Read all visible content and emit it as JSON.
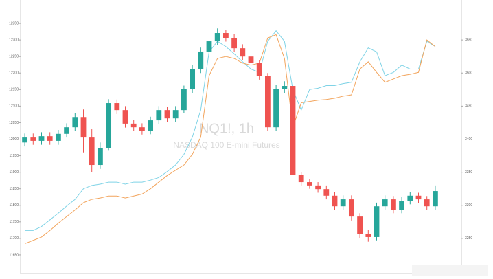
{
  "chart_data": {
    "type": "candlestick",
    "watermark_title": "NQ1!, 1h",
    "watermark_subtitle": "NASDAQ 100 E-mini Futures",
    "open": [
      11990,
      12005,
      11995,
      12009,
      11995,
      12016,
      12036,
      12067,
      12005,
      11922,
      11974,
      12109,
      12088,
      12047,
      12036,
      12026,
      12057,
      12088,
      12063,
      12088,
      12151,
      12213,
      12265,
      12296,
      12321,
      12306,
      12275,
      12250,
      12230,
      12192,
      12036,
      12151,
      12161,
      11891,
      11870,
      11860,
      11849,
      11829,
      11797,
      11818,
      11766,
      11714,
      11704,
      11797,
      11818,
      11787,
      11814,
      11829,
      11818,
      11797
    ],
    "high": [
      12017,
      12017,
      12021,
      12021,
      12028,
      12048,
      12079,
      12090,
      12030,
      11990,
      12121,
      12120,
      12100,
      12058,
      12048,
      12068,
      12100,
      12098,
      12100,
      12162,
      12225,
      12277,
      12308,
      12335,
      12330,
      12318,
      12287,
      12262,
      12240,
      12200,
      12165,
      12175,
      12170,
      11900,
      11880,
      11870,
      11860,
      11840,
      11830,
      11830,
      11776,
      11725,
      11808,
      11830,
      11828,
      11825,
      11840,
      11838,
      11828,
      11860
    ],
    "low": [
      11978,
      11983,
      11983,
      11983,
      11983,
      12005,
      12025,
      11960,
      11900,
      11910,
      11965,
      12076,
      12035,
      12024,
      12014,
      12015,
      12045,
      12051,
      12052,
      12078,
      12140,
      12200,
      12255,
      12285,
      12295,
      12264,
      12238,
      12218,
      12180,
      12025,
      12025,
      12140,
      11880,
      11860,
      11850,
      11838,
      11818,
      11786,
      11786,
      11754,
      11700,
      11690,
      11694,
      11786,
      11776,
      11776,
      11803,
      11807,
      11786,
      11786
    ],
    "close": [
      12005,
      11995,
      12009,
      11995,
      12016,
      12036,
      12067,
      12005,
      11922,
      11974,
      12109,
      12088,
      12047,
      12036,
      12026,
      12057,
      12088,
      12063,
      12088,
      12151,
      12213,
      12265,
      12296,
      12321,
      12306,
      12275,
      12250,
      12230,
      12192,
      12036,
      12151,
      12161,
      11891,
      11870,
      11860,
      11849,
      11829,
      11797,
      11818,
      11766,
      11714,
      11704,
      11797,
      11818,
      11787,
      11814,
      11829,
      11818,
      11797,
      11843
    ],
    "up_color": "#26a69a",
    "down_color": "#ef5350",
    "ylim": [
      11600,
      12400
    ],
    "yticks": [
      11650,
      11700,
      11750,
      11800,
      11850,
      11900,
      11950,
      12000,
      12050,
      12100,
      12150,
      12200,
      12250,
      12300,
      12350
    ],
    "y2lim": [
      3200,
      3600
    ],
    "y2ticks": [
      3250,
      3300,
      3350,
      3400,
      3450,
      3500,
      3550
    ],
    "series": [
      {
        "color": "#7fd3e6",
        "axis": "y2",
        "values": [
          3262,
          3262,
          3268,
          3278,
          3288,
          3299,
          3309,
          3325,
          3330,
          3332,
          3335,
          3335,
          3332,
          3335,
          3335,
          3338,
          3342,
          3351,
          3361,
          3377,
          3403,
          3444,
          3532,
          3548,
          3540,
          3529,
          3517,
          3506,
          3501,
          3548,
          3564,
          3548,
          3475,
          3444,
          3475,
          3477,
          3481,
          3481,
          3484,
          3486,
          3517,
          3538,
          3532,
          3496,
          3501,
          3512,
          3506,
          3506,
          3548,
          3540
        ]
      },
      {
        "color": "#f2a45c",
        "axis": "y2",
        "values": [
          3242,
          3247,
          3252,
          3262,
          3273,
          3283,
          3293,
          3304,
          3309,
          3311,
          3314,
          3314,
          3311,
          3314,
          3317,
          3325,
          3335,
          3345,
          3353,
          3361,
          3377,
          3403,
          3496,
          3522,
          3525,
          3522,
          3515,
          3512,
          3515,
          3553,
          3558,
          3522,
          3418,
          3455,
          3457,
          3459,
          3460,
          3462,
          3465,
          3467,
          3506,
          3517,
          3501,
          3486,
          3491,
          3496,
          3498,
          3501,
          3550,
          3540
        ]
      }
    ]
  }
}
